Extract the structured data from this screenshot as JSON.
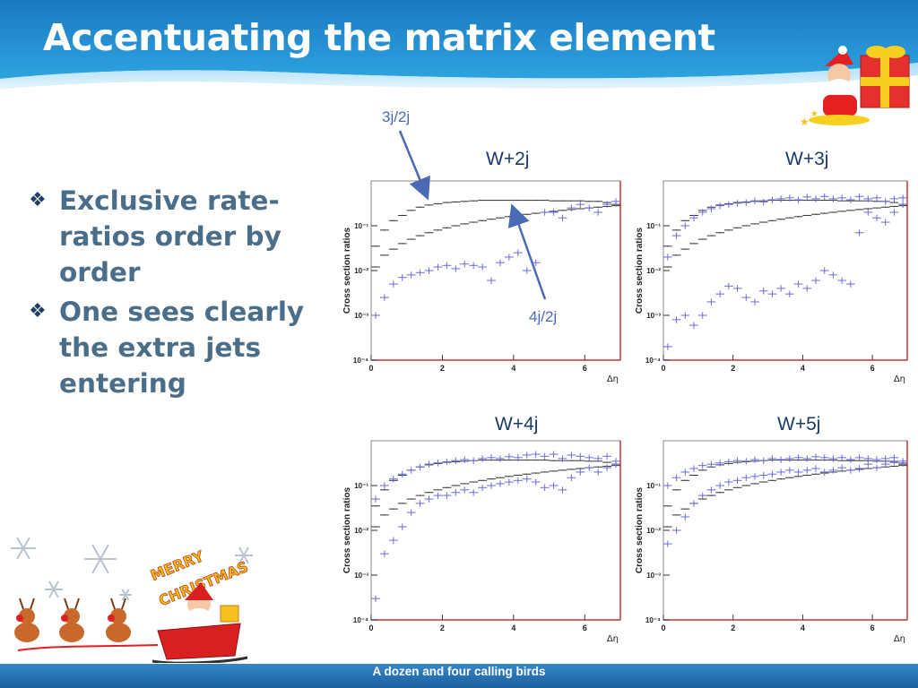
{
  "slide": {
    "title": "Accentuating the matrix element",
    "bullets": [
      "Exclusive rate-ratios order by order",
      "One sees clearly the extra jets entering"
    ],
    "bullet_icon": "four-diamond-bullet-icon",
    "footer": "A dozen and four calling birds",
    "decoration": {
      "banner_text": "MERRY CHRISTMAS",
      "images": [
        "santa-with-gift-icon",
        "santa-sleigh-reindeer-icon",
        "snowflake-icon"
      ]
    },
    "annotations": [
      "3j/2j",
      "4j/2j"
    ]
  },
  "colors": {
    "title_text": "#ffffff",
    "header_blue": "#1d7fc4",
    "bullet_text": "#4a6e8a",
    "series_black": "#333333",
    "series_blue": "#6a6ae0",
    "arrow_blue": "#4a6ab5",
    "frame_red": "#cc3333",
    "footer_blue": "#2a73b5"
  },
  "chart_data": [
    {
      "type": "scatter",
      "title": "W+2j",
      "xlabel": "Δη",
      "ylabel": "Cross section ratios",
      "xlim": [
        0,
        7
      ],
      "ylim": [
        0.0001,
        1
      ],
      "yscale": "log",
      "x_ticks": [
        "0",
        "2",
        "4",
        "6"
      ],
      "y_ticks": [
        "10⁻⁴",
        "10⁻³",
        "10⁻²",
        "10⁻¹"
      ],
      "grid": false,
      "series": [
        {
          "color": "#333333",
          "x": [
            0.125,
            0.375,
            0.625,
            0.875,
            1.125,
            1.375,
            1.625,
            1.875,
            2.125,
            2.375,
            2.625,
            2.875,
            3.125,
            3.375,
            3.625,
            3.875,
            4.125,
            4.375,
            4.625,
            4.875,
            5.125,
            5.375,
            5.625,
            5.875,
            6.125,
            6.375,
            6.625,
            6.875
          ],
          "y": [
            0.035,
            0.08,
            0.13,
            0.17,
            0.22,
            0.26,
            0.29,
            0.31,
            0.33,
            0.34,
            0.35,
            0.36,
            0.37,
            0.37,
            0.37,
            0.37,
            0.37,
            0.37,
            0.37,
            0.37,
            0.36,
            0.36,
            0.36,
            0.36,
            0.35,
            0.35,
            0.33,
            0.3
          ]
        },
        {
          "color": "#333333",
          "x": [
            0.125,
            0.375,
            0.625,
            0.875,
            1.125,
            1.375,
            1.625,
            1.875,
            2.125,
            2.375,
            2.625,
            2.875,
            3.125,
            3.375,
            3.625,
            3.875,
            4.125,
            4.375,
            4.625,
            4.875,
            5.125,
            5.375,
            5.625,
            5.875,
            6.125,
            6.375,
            6.625,
            6.875
          ],
          "y": [
            0.012,
            0.022,
            0.03,
            0.04,
            0.05,
            0.06,
            0.07,
            0.08,
            0.09,
            0.1,
            0.11,
            0.12,
            0.13,
            0.14,
            0.15,
            0.16,
            0.17,
            0.18,
            0.19,
            0.2,
            0.21,
            0.22,
            0.23,
            0.24,
            0.25,
            0.26,
            0.27,
            0.28
          ]
        },
        {
          "color": "#6a6ae0",
          "x": [
            0.125,
            0.375,
            0.625,
            0.875,
            1.125,
            1.375,
            1.625,
            1.875,
            2.125,
            2.375,
            2.625,
            2.875,
            3.125,
            3.375,
            3.625,
            3.875,
            4.125,
            4.375,
            4.625,
            4.875,
            5.125,
            5.375,
            5.625,
            5.875,
            6.125,
            6.375,
            6.625,
            6.875
          ],
          "y": [
            0.001,
            0.0025,
            0.005,
            0.007,
            0.008,
            0.009,
            0.01,
            0.012,
            0.013,
            0.011,
            0.014,
            0.013,
            0.012,
            0.006,
            0.015,
            0.02,
            0.025,
            0.01,
            0.015,
            0.2,
            0.2,
            0.15,
            0.25,
            0.3,
            0.25,
            0.2,
            0.3,
            0.35
          ]
        }
      ]
    },
    {
      "type": "scatter",
      "title": "W+3j",
      "xlabel": "Δη",
      "ylabel": "Cross section ratios",
      "xlim": [
        0,
        7
      ],
      "ylim": [
        0.0001,
        1
      ],
      "yscale": "log",
      "x_ticks": [
        "0",
        "2",
        "4",
        "6"
      ],
      "y_ticks": [
        "10⁻⁴",
        "10⁻³",
        "10⁻²",
        "10⁻¹"
      ],
      "grid": false,
      "series": [
        {
          "color": "#333333",
          "x": [
            0.125,
            0.375,
            0.625,
            0.875,
            1.125,
            1.375,
            1.625,
            1.875,
            2.125,
            2.375,
            2.625,
            2.875,
            3.125,
            3.375,
            3.625,
            3.875,
            4.125,
            4.375,
            4.625,
            4.875,
            5.125,
            5.375,
            5.625,
            5.875,
            6.125,
            6.375,
            6.625,
            6.875
          ],
          "y": [
            0.035,
            0.08,
            0.13,
            0.17,
            0.22,
            0.26,
            0.29,
            0.31,
            0.33,
            0.34,
            0.35,
            0.36,
            0.37,
            0.37,
            0.37,
            0.37,
            0.37,
            0.37,
            0.37,
            0.37,
            0.36,
            0.36,
            0.36,
            0.36,
            0.35,
            0.35,
            0.33,
            0.3
          ]
        },
        {
          "color": "#333333",
          "x": [
            0.125,
            0.375,
            0.625,
            0.875,
            1.125,
            1.375,
            1.625,
            1.875,
            2.125,
            2.375,
            2.625,
            2.875,
            3.125,
            3.375,
            3.625,
            3.875,
            4.125,
            4.375,
            4.625,
            4.875,
            5.125,
            5.375,
            5.625,
            5.875,
            6.125,
            6.375,
            6.625,
            6.875
          ],
          "y": [
            0.012,
            0.022,
            0.03,
            0.04,
            0.05,
            0.06,
            0.07,
            0.08,
            0.09,
            0.1,
            0.11,
            0.12,
            0.13,
            0.14,
            0.15,
            0.16,
            0.17,
            0.18,
            0.19,
            0.2,
            0.21,
            0.22,
            0.23,
            0.24,
            0.25,
            0.26,
            0.27,
            0.28
          ]
        },
        {
          "color": "#6a6ae0",
          "x": [
            0.125,
            0.375,
            0.625,
            0.875,
            1.125,
            1.375,
            1.625,
            1.875,
            2.125,
            2.375,
            2.625,
            2.875,
            3.125,
            3.375,
            3.625,
            3.875,
            4.125,
            4.375,
            4.625,
            4.875,
            5.125,
            5.375,
            5.625,
            5.875,
            6.125,
            6.375,
            6.625,
            6.875
          ],
          "y": [
            0.02,
            0.06,
            0.1,
            0.15,
            0.2,
            0.24,
            0.28,
            0.3,
            0.32,
            0.33,
            0.36,
            0.34,
            0.38,
            0.4,
            0.42,
            0.38,
            0.44,
            0.4,
            0.45,
            0.4,
            0.42,
            0.38,
            0.45,
            0.4,
            0.42,
            0.35,
            0.4,
            0.42
          ]
        },
        {
          "color": "#6a6ae0",
          "x": [
            0.125,
            0.375,
            0.625,
            0.875,
            1.125,
            1.375,
            1.625,
            1.875,
            2.125,
            2.375,
            2.625,
            2.875,
            3.125,
            3.375,
            3.625,
            3.875,
            4.125,
            4.375,
            4.625,
            4.875,
            5.125,
            5.375,
            5.625,
            5.875,
            6.125,
            6.375,
            6.625,
            6.875
          ],
          "y": [
            0.0002,
            0.0008,
            0.001,
            0.0006,
            0.001,
            0.002,
            0.003,
            0.0045,
            0.004,
            0.0025,
            0.002,
            0.0035,
            0.003,
            0.004,
            0.003,
            0.005,
            0.004,
            0.006,
            0.01,
            0.008,
            0.006,
            0.005,
            0.07,
            0.2,
            0.15,
            0.12,
            0.2,
            0.3
          ]
        }
      ]
    },
    {
      "type": "scatter",
      "title": "W+4j",
      "xlabel": "Δη",
      "ylabel": "Cross section ratios",
      "xlim": [
        0,
        7
      ],
      "ylim": [
        0.0001,
        1
      ],
      "yscale": "log",
      "x_ticks": [
        "0",
        "2",
        "4",
        "6"
      ],
      "y_ticks": [
        "10⁻⁴",
        "10⁻³",
        "10⁻²",
        "10⁻¹"
      ],
      "grid": false,
      "series": [
        {
          "color": "#333333",
          "x": [
            0.125,
            0.375,
            0.625,
            0.875,
            1.125,
            1.375,
            1.625,
            1.875,
            2.125,
            2.375,
            2.625,
            2.875,
            3.125,
            3.375,
            3.625,
            3.875,
            4.125,
            4.375,
            4.625,
            4.875,
            5.125,
            5.375,
            5.625,
            5.875,
            6.125,
            6.375,
            6.625,
            6.875
          ],
          "y": [
            0.035,
            0.08,
            0.13,
            0.17,
            0.22,
            0.26,
            0.29,
            0.31,
            0.33,
            0.34,
            0.35,
            0.36,
            0.37,
            0.37,
            0.37,
            0.37,
            0.37,
            0.37,
            0.37,
            0.37,
            0.36,
            0.36,
            0.36,
            0.36,
            0.35,
            0.35,
            0.33,
            0.3
          ]
        },
        {
          "color": "#333333",
          "x": [
            0.125,
            0.375,
            0.625,
            0.875,
            1.125,
            1.375,
            1.625,
            1.875,
            2.125,
            2.375,
            2.625,
            2.875,
            3.125,
            3.375,
            3.625,
            3.875,
            4.125,
            4.375,
            4.625,
            4.875,
            5.125,
            5.375,
            5.625,
            5.875,
            6.125,
            6.375,
            6.625,
            6.875
          ],
          "y": [
            0.012,
            0.022,
            0.03,
            0.04,
            0.05,
            0.06,
            0.07,
            0.08,
            0.09,
            0.1,
            0.11,
            0.12,
            0.13,
            0.14,
            0.15,
            0.16,
            0.17,
            0.18,
            0.19,
            0.2,
            0.21,
            0.22,
            0.23,
            0.24,
            0.25,
            0.26,
            0.27,
            0.28
          ]
        },
        {
          "color": "#6a6ae0",
          "x": [
            0.125,
            0.375,
            0.625,
            0.875,
            1.125,
            1.375,
            1.625,
            1.875,
            2.125,
            2.375,
            2.625,
            2.875,
            3.125,
            3.375,
            3.625,
            3.875,
            4.125,
            4.375,
            4.625,
            4.875,
            5.125,
            5.375,
            5.625,
            5.875,
            6.125,
            6.375,
            6.625,
            6.875
          ],
          "y": [
            0.05,
            0.1,
            0.14,
            0.18,
            0.22,
            0.26,
            0.3,
            0.32,
            0.34,
            0.36,
            0.38,
            0.36,
            0.4,
            0.42,
            0.4,
            0.44,
            0.42,
            0.48,
            0.5,
            0.45,
            0.5,
            0.4,
            0.48,
            0.45,
            0.42,
            0.4,
            0.45,
            0.35
          ]
        },
        {
          "color": "#6a6ae0",
          "x": [
            0.125,
            0.375,
            0.625,
            0.875,
            1.125,
            1.375,
            1.625,
            1.875,
            2.125,
            2.375,
            2.625,
            2.875,
            3.125,
            3.375,
            3.625,
            3.875,
            4.125,
            4.375,
            4.625,
            4.875,
            5.125,
            5.375,
            5.625,
            5.875,
            6.125,
            6.375,
            6.625,
            6.875
          ],
          "y": [
            0.0003,
            0.003,
            0.006,
            0.012,
            0.025,
            0.04,
            0.05,
            0.06,
            0.06,
            0.07,
            0.08,
            0.07,
            0.09,
            0.1,
            0.11,
            0.12,
            0.13,
            0.14,
            0.12,
            0.09,
            0.1,
            0.08,
            0.15,
            0.2,
            0.25,
            0.2,
            0.25,
            0.3
          ]
        }
      ]
    },
    {
      "type": "scatter",
      "title": "W+5j",
      "xlabel": "Δη",
      "ylabel": "Cross section ratios",
      "xlim": [
        0,
        7
      ],
      "ylim": [
        0.0001,
        1
      ],
      "yscale": "log",
      "x_ticks": [
        "0",
        "2",
        "4",
        "6"
      ],
      "y_ticks": [
        "10⁻⁴",
        "10⁻³",
        "10⁻²",
        "10⁻¹"
      ],
      "grid": false,
      "series": [
        {
          "color": "#333333",
          "x": [
            0.125,
            0.375,
            0.625,
            0.875,
            1.125,
            1.375,
            1.625,
            1.875,
            2.125,
            2.375,
            2.625,
            2.875,
            3.125,
            3.375,
            3.625,
            3.875,
            4.125,
            4.375,
            4.625,
            4.875,
            5.125,
            5.375,
            5.625,
            5.875,
            6.125,
            6.375,
            6.625,
            6.875
          ],
          "y": [
            0.035,
            0.08,
            0.13,
            0.17,
            0.22,
            0.26,
            0.29,
            0.31,
            0.33,
            0.34,
            0.35,
            0.36,
            0.37,
            0.37,
            0.37,
            0.37,
            0.37,
            0.37,
            0.37,
            0.37,
            0.36,
            0.36,
            0.36,
            0.36,
            0.35,
            0.35,
            0.33,
            0.3
          ]
        },
        {
          "color": "#333333",
          "x": [
            0.125,
            0.375,
            0.625,
            0.875,
            1.125,
            1.375,
            1.625,
            1.875,
            2.125,
            2.375,
            2.625,
            2.875,
            3.125,
            3.375,
            3.625,
            3.875,
            4.125,
            4.375,
            4.625,
            4.875,
            5.125,
            5.375,
            5.625,
            5.875,
            6.125,
            6.375,
            6.625,
            6.875
          ],
          "y": [
            0.012,
            0.022,
            0.03,
            0.04,
            0.05,
            0.06,
            0.07,
            0.08,
            0.09,
            0.1,
            0.11,
            0.12,
            0.13,
            0.14,
            0.15,
            0.16,
            0.17,
            0.18,
            0.19,
            0.2,
            0.21,
            0.22,
            0.23,
            0.24,
            0.25,
            0.26,
            0.27,
            0.28
          ]
        },
        {
          "color": "#6a6ae0",
          "x": [
            0.125,
            0.375,
            0.625,
            0.875,
            1.125,
            1.375,
            1.625,
            1.875,
            2.125,
            2.375,
            2.625,
            2.875,
            3.125,
            3.375,
            3.625,
            3.875,
            4.125,
            4.375,
            4.625,
            4.875,
            5.125,
            5.375,
            5.625,
            5.875,
            6.125,
            6.375,
            6.625,
            6.875
          ],
          "y": [
            0.1,
            0.15,
            0.2,
            0.24,
            0.28,
            0.3,
            0.32,
            0.34,
            0.36,
            0.35,
            0.38,
            0.36,
            0.4,
            0.38,
            0.4,
            0.42,
            0.4,
            0.44,
            0.42,
            0.4,
            0.42,
            0.38,
            0.42,
            0.4,
            0.38,
            0.4,
            0.42,
            0.35
          ]
        },
        {
          "color": "#6a6ae0",
          "x": [
            0.125,
            0.375,
            0.625,
            0.875,
            1.125,
            1.375,
            1.625,
            1.875,
            2.125,
            2.375,
            2.625,
            2.875,
            3.125,
            3.375,
            3.625,
            3.875,
            4.125,
            4.375,
            4.625,
            4.875,
            5.125,
            5.375,
            5.625,
            5.875,
            6.125,
            6.375,
            6.625,
            6.875
          ],
          "y": [
            0.005,
            0.01,
            0.02,
            0.04,
            0.06,
            0.08,
            0.1,
            0.12,
            0.13,
            0.15,
            0.16,
            0.17,
            0.18,
            0.2,
            0.22,
            0.2,
            0.22,
            0.24,
            0.2,
            0.22,
            0.25,
            0.22,
            0.24,
            0.3,
            0.25,
            0.3,
            0.35,
            0.32
          ]
        }
      ]
    }
  ]
}
